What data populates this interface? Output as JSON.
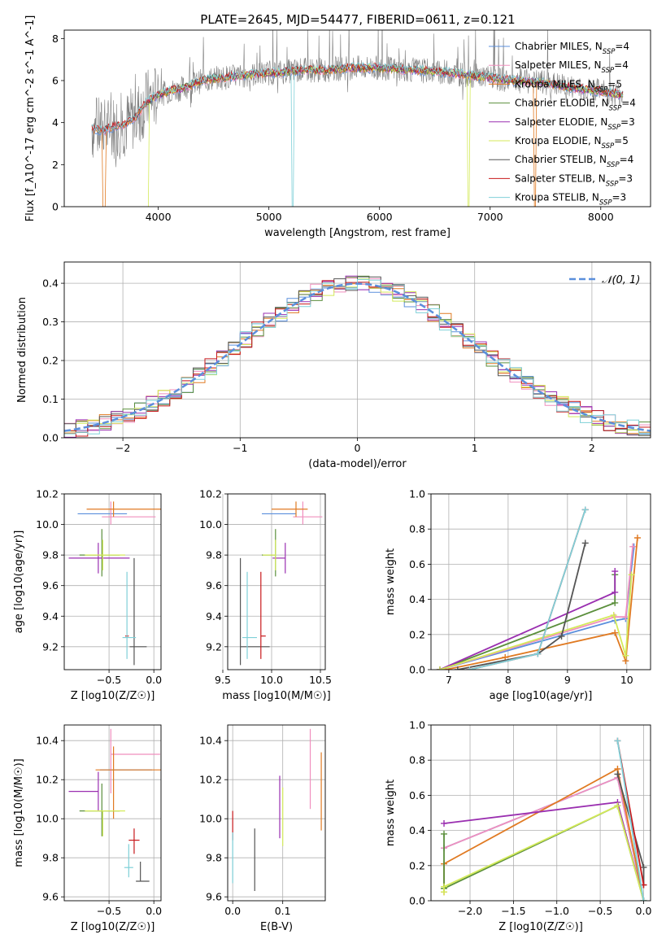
{
  "figure": {
    "title": "PLATE=2645, MJD=54477, FIBERID=0611, z=0.121"
  },
  "colors": {
    "chabrier_miles": "#5b8fdc",
    "salpeter_miles": "#f08fbe",
    "kroupa_miles": "#e07a22",
    "chabrier_elodie": "#5b8f3c",
    "salpeter_elodie": "#9a2fb0",
    "kroupa_elodie": "#d4ea5a",
    "chabrier_stelib": "#555555",
    "salpeter_stelib": "#c8191c",
    "kroupa_stelib": "#7fd0d8",
    "spectrum": "#808080",
    "normal": "#5b8fdc"
  },
  "chart_data": [
    {
      "type": "line",
      "panel": "spectrum",
      "title": "PLATE=2645, MJD=54477, FIBERID=0611, z=0.121",
      "xlabel": "wavelength [Angstrom, rest frame]",
      "ylabel": "Flux [f_λ10^-17 erg cm^-2 s^-1 A^-1]",
      "xlim": [
        3150,
        8450
      ],
      "ylim": [
        0,
        8.4
      ],
      "xticks": [
        "4000",
        "5000",
        "6000",
        "7000",
        "8000"
      ],
      "yticks": [
        "0",
        "2",
        "4",
        "6",
        "8"
      ],
      "grid": false,
      "legend_position": "top-right",
      "continuum": {
        "x": [
          3400,
          3500,
          3600,
          3700,
          3800,
          3900,
          4000,
          4100,
          4200,
          4300,
          4400,
          4500,
          4700,
          4900,
          5100,
          5300,
          5500,
          5700,
          6000,
          6300,
          6600,
          6900,
          7200,
          7500,
          7800,
          8000,
          8200
        ],
        "y": [
          3.7,
          3.6,
          3.8,
          3.9,
          4.3,
          5.0,
          5.3,
          5.5,
          5.6,
          5.8,
          6.0,
          6.1,
          6.2,
          6.3,
          6.4,
          6.5,
          6.5,
          6.6,
          6.6,
          6.5,
          6.4,
          6.2,
          6.0,
          5.9,
          5.6,
          5.5,
          5.3
        ]
      },
      "series": [
        {
          "name": "Chabrier MILES, N_SSP=4",
          "key": "chabrier_miles"
        },
        {
          "name": "Salpeter MILES, N_SSP=4",
          "key": "salpeter_miles"
        },
        {
          "name": "Kroupa MILES, N_SSP=5",
          "key": "kroupa_miles"
        },
        {
          "name": "Chabrier ELODIE, N_SSP=4",
          "key": "chabrier_elodie"
        },
        {
          "name": "Salpeter ELODIE, N_SSP=3",
          "key": "salpeter_elodie"
        },
        {
          "name": "Kroupa ELODIE, N_SSP=5",
          "key": "kroupa_elodie"
        },
        {
          "name": "Chabrier STELIB, N_SSP=4",
          "key": "chabrier_stelib"
        },
        {
          "name": "Salpeter STELIB, N_SSP=3",
          "key": "salpeter_stelib"
        },
        {
          "name": "Kroupa STELIB, N_SSP=3",
          "key": "kroupa_stelib"
        }
      ]
    },
    {
      "type": "line",
      "panel": "residual-histogram",
      "xlabel": "(data-model)/error",
      "ylabel": "Normed distribution",
      "xlim": [
        -2.5,
        2.5
      ],
      "ylim": [
        0,
        0.455
      ],
      "xticks": [
        "−2",
        "−1",
        "0",
        "1",
        "2"
      ],
      "yticks": [
        "0.0",
        "0.1",
        "0.2",
        "0.3",
        "0.4"
      ],
      "grid": true,
      "legend_position": "top-right",
      "legend": [
        "𝒩(0, 1)"
      ],
      "bin_width": 0.1,
      "reference": "normal distribution mean 0, sigma 1"
    },
    {
      "type": "scatter",
      "panel": "age-vs-Z",
      "xlabel": "Z [log10(Z/Z☉)]",
      "ylabel": "age  [log10(age/yr)]",
      "xlim": [
        -1.0,
        0.08
      ],
      "ylim": [
        9.05,
        10.2
      ],
      "xticks": [
        "−0.5",
        "0.0"
      ],
      "yticks": [
        "9.2",
        "9.4",
        "9.6",
        "9.8",
        "10.0",
        "10.2"
      ],
      "grid": true,
      "points": [
        {
          "key": "chabrier_miles",
          "x": -0.55,
          "xerr": [
            0.3,
            0.25
          ],
          "y": 10.07,
          "yerr": [
            0.0,
            0.0
          ]
        },
        {
          "key": "salpeter_miles",
          "x": -0.48,
          "xerr": [
            0.1,
            0.5
          ],
          "y": 10.05,
          "yerr": [
            0.05,
            0.1
          ]
        },
        {
          "key": "kroupa_miles",
          "x": -0.45,
          "xerr": [
            0.3,
            0.55
          ],
          "y": 10.1,
          "yerr": [
            0.05,
            0.05
          ]
        },
        {
          "key": "chabrier_elodie",
          "x": -0.58,
          "xerr": [
            0.25,
            0.2
          ],
          "y": 9.8,
          "yerr": [
            0.14,
            0.17
          ]
        },
        {
          "key": "salpeter_elodie",
          "x": -0.62,
          "xerr": [
            0.33,
            0.35
          ],
          "y": 9.78,
          "yerr": [
            0.1,
            0.1
          ]
        },
        {
          "key": "kroupa_elodie",
          "x": -0.57,
          "xerr": [
            0.2,
            0.25
          ],
          "y": 9.8,
          "yerr": [
            0.1,
            0.1
          ]
        },
        {
          "key": "chabrier_stelib",
          "x": -0.22,
          "xerr": [
            0.05,
            0.14
          ],
          "y": 9.2,
          "yerr": [
            0.12,
            0.58
          ]
        },
        {
          "key": "salpeter_stelib",
          "x": -0.3,
          "xerr": [
            0.02,
            0.02
          ],
          "y": 9.27,
          "yerr": [
            0.0,
            0.0
          ]
        },
        {
          "key": "kroupa_stelib",
          "x": -0.3,
          "xerr": [
            0.05,
            0.1
          ],
          "y": 9.26,
          "yerr": [
            0.14,
            0.43
          ]
        }
      ]
    },
    {
      "type": "scatter",
      "panel": "age-vs-mass",
      "xlabel": "mass [log10(M/M☉)]",
      "ylabel": "",
      "xlim": [
        9.55,
        10.55
      ],
      "ylim": [
        9.05,
        10.2
      ],
      "xticks": [
        "9.5",
        "10.0",
        "10.5"
      ],
      "yticks": [
        "9.2",
        "9.4",
        "9.6",
        "9.8",
        "10.0",
        "10.2"
      ],
      "grid": true,
      "points": [
        {
          "key": "chabrier_miles",
          "x": 10.25,
          "xerr": [
            0.35,
            0.0
          ],
          "y": 10.07,
          "yerr": [
            0.0,
            0.0
          ]
        },
        {
          "key": "salpeter_miles",
          "x": 10.32,
          "xerr": [
            0.1,
            0.2
          ],
          "y": 10.05,
          "yerr": [
            0.05,
            0.1
          ]
        },
        {
          "key": "kroupa_miles",
          "x": 10.25,
          "xerr": [
            0.25,
            0.12
          ],
          "y": 10.1,
          "yerr": [
            0.05,
            0.05
          ]
        },
        {
          "key": "chabrier_elodie",
          "x": 10.04,
          "xerr": [
            0.14,
            0.0
          ],
          "y": 9.8,
          "yerr": [
            0.14,
            0.17
          ]
        },
        {
          "key": "salpeter_elodie",
          "x": 10.14,
          "xerr": [
            0.13,
            0.0
          ],
          "y": 9.78,
          "yerr": [
            0.1,
            0.1
          ]
        },
        {
          "key": "kroupa_elodie",
          "x": 10.04,
          "xerr": [
            0.13,
            0.0
          ],
          "y": 9.8,
          "yerr": [
            0.1,
            0.1
          ]
        },
        {
          "key": "chabrier_stelib",
          "x": 9.68,
          "xerr": [
            0.0,
            0.3
          ],
          "y": 9.2,
          "yerr": [
            0.12,
            0.58
          ]
        },
        {
          "key": "salpeter_stelib",
          "x": 9.89,
          "xerr": [
            0.0,
            0.05
          ],
          "y": 9.27,
          "yerr": [
            0.15,
            0.42
          ]
        },
        {
          "key": "kroupa_stelib",
          "x": 9.75,
          "xerr": [
            0.05,
            0.1
          ],
          "y": 9.26,
          "yerr": [
            0.14,
            0.43
          ]
        }
      ]
    },
    {
      "type": "line",
      "panel": "mass-weight-vs-age",
      "xlabel": "age  [log10(age/yr)]",
      "ylabel": "mass weight",
      "xlim": [
        6.7,
        10.4
      ],
      "ylim": [
        0,
        1.0
      ],
      "xticks": [
        "7",
        "8",
        "9",
        "10"
      ],
      "yticks": [
        "0.0",
        "0.2",
        "0.4",
        "0.6",
        "0.8",
        "1.0"
      ],
      "grid": true,
      "series": [
        {
          "key": "chabrier_miles",
          "x": [
            6.85,
            9.8,
            9.98,
            10.12
          ],
          "y": [
            0.0,
            0.28,
            0.29,
            0.7
          ]
        },
        {
          "key": "salpeter_miles",
          "x": [
            6.85,
            9.8,
            9.98,
            10.1
          ],
          "y": [
            0.0,
            0.3,
            0.3,
            0.7
          ]
        },
        {
          "key": "kroupa_miles",
          "x": [
            6.95,
            7.95,
            9.8,
            9.98,
            10.18
          ],
          "y": [
            0.0,
            0.07,
            0.21,
            0.05,
            0.75
          ]
        },
        {
          "key": "chabrier_elodie",
          "x": [
            6.85,
            9.8,
            9.8
          ],
          "y": [
            0.0,
            0.38,
            0.54
          ]
        },
        {
          "key": "salpeter_elodie",
          "x": [
            6.85,
            9.8,
            9.8
          ],
          "y": [
            0.0,
            0.44,
            0.56
          ]
        },
        {
          "key": "kroupa_elodie",
          "x": [
            6.85,
            9.78,
            9.98,
            10.08
          ],
          "y": [
            0.0,
            0.31,
            0.08,
            0.54
          ]
        },
        {
          "key": "chabrier_stelib",
          "x": [
            7.15,
            8.5,
            8.9,
            9.3
          ],
          "y": [
            0.0,
            0.09,
            0.19,
            0.72
          ]
        },
        {
          "key": "salpeter_stelib",
          "x": [
            7.35,
            8.5,
            9.3
          ],
          "y": [
            0.0,
            0.09,
            0.91
          ]
        },
        {
          "key": "kroupa_stelib",
          "x": [
            7.35,
            8.5,
            9.3
          ],
          "y": [
            0.0,
            0.09,
            0.91
          ]
        }
      ]
    },
    {
      "type": "scatter",
      "panel": "mass-vs-Z",
      "xlabel": "Z [log10(Z/Z☉)]",
      "ylabel": "mass [log10(M/M☉)]",
      "xlim": [
        -1.0,
        0.08
      ],
      "ylim": [
        9.58,
        10.48
      ],
      "xticks": [
        "−0.5",
        "0.0"
      ],
      "yticks": [
        "9.6",
        "9.8",
        "10.0",
        "10.2",
        "10.4"
      ],
      "grid": true,
      "points": [
        {
          "key": "chabrier_miles",
          "x": -0.3,
          "xerr": [
            0.3,
            0.28
          ],
          "y": 10.25,
          "yerr": [
            0.0,
            0.0
          ]
        },
        {
          "key": "salpeter_miles",
          "x": -0.48,
          "xerr": [
            0.0,
            0.55
          ],
          "y": 10.33,
          "yerr": [
            0.2,
            0.13
          ]
        },
        {
          "key": "kroupa_miles",
          "x": -0.45,
          "xerr": [
            0.2,
            0.55
          ],
          "y": 10.25,
          "yerr": [
            0.25,
            0.12
          ]
        },
        {
          "key": "chabrier_elodie",
          "x": -0.58,
          "xerr": [
            0.25,
            0.2
          ],
          "y": 10.04,
          "yerr": [
            0.13,
            0.14
          ]
        },
        {
          "key": "salpeter_elodie",
          "x": -0.62,
          "xerr": [
            0.33,
            0.0
          ],
          "y": 10.14,
          "yerr": [
            0.1,
            0.1
          ]
        },
        {
          "key": "kroupa_elodie",
          "x": -0.57,
          "xerr": [
            0.2,
            0.25
          ],
          "y": 10.04,
          "yerr": [
            0.13,
            0.0
          ]
        },
        {
          "key": "chabrier_stelib",
          "x": -0.15,
          "xerr": [
            0.05,
            0.1
          ],
          "y": 9.68,
          "yerr": [
            0.0,
            0.1
          ]
        },
        {
          "key": "salpeter_stelib",
          "x": -0.22,
          "xerr": [
            0.06,
            0.06
          ],
          "y": 9.89,
          "yerr": [
            0.07,
            0.06
          ]
        },
        {
          "key": "kroupa_stelib",
          "x": -0.28,
          "xerr": [
            0.05,
            0.05
          ],
          "y": 9.75,
          "yerr": [
            0.05,
            0.12
          ]
        }
      ]
    },
    {
      "type": "scatter",
      "panel": "mass-vs-EBV",
      "xlabel": "E(B-V)",
      "ylabel": "",
      "xlim": [
        -0.01,
        0.185
      ],
      "ylim": [
        9.58,
        10.48
      ],
      "xticks": [
        "0.0",
        "0.1"
      ],
      "yticks": [
        "9.6",
        "9.8",
        "10.0",
        "10.2",
        "10.4"
      ],
      "grid": true,
      "points": [
        {
          "key": "kroupa_miles",
          "x": 0.177,
          "y": 10.2,
          "yerr": [
            0.26,
            0.14
          ]
        },
        {
          "key": "salpeter_miles",
          "x": 0.155,
          "y": 10.25,
          "yerr": [
            0.2,
            0.21
          ]
        },
        {
          "key": "salpeter_elodie",
          "x": 0.094,
          "y": 10.1,
          "yerr": [
            0.2,
            0.12
          ]
        },
        {
          "key": "kroupa_elodie",
          "x": 0.1,
          "y": 10.04,
          "yerr": [
            0.18,
            0.12
          ]
        },
        {
          "key": "chabrier_stelib",
          "x": 0.044,
          "y": 9.68,
          "yerr": [
            0.05,
            0.27
          ]
        },
        {
          "key": "salpeter_stelib",
          "x": 0.0,
          "y": 9.89,
          "yerr": [
            0.0,
            0.15
          ]
        },
        {
          "key": "kroupa_stelib",
          "x": 0.0,
          "y": 9.75,
          "yerr": [
            0.08,
            0.18
          ]
        }
      ]
    },
    {
      "type": "line",
      "panel": "mass-weight-vs-Z",
      "xlabel": "Z [log10(Z/Z☉)]",
      "ylabel": "mass weight",
      "xlim": [
        -2.45,
        0.08
      ],
      "ylim": [
        0,
        1.0
      ],
      "xticks": [
        "−2.0",
        "−1.5",
        "−1.0",
        "−0.5",
        "0.0"
      ],
      "yticks": [
        "0.0",
        "0.2",
        "0.4",
        "0.6",
        "0.8",
        "1.0"
      ],
      "grid": true,
      "series": [
        {
          "key": "chabrier_miles",
          "x": [
            -2.3,
            -0.3,
            0.0
          ],
          "y": [
            0.3,
            0.7,
            0.0
          ]
        },
        {
          "key": "salpeter_miles",
          "x": [
            -2.3,
            -0.3,
            0.0
          ],
          "y": [
            0.3,
            0.7,
            0.0
          ]
        },
        {
          "key": "kroupa_miles",
          "x": [
            -2.3,
            -2.3,
            -0.3,
            0.0
          ],
          "y": [
            0.05,
            0.21,
            0.75,
            0.0
          ]
        },
        {
          "key": "chabrier_elodie",
          "x": [
            -2.3,
            -2.3,
            -0.3,
            0.0
          ],
          "y": [
            0.38,
            0.07,
            0.54,
            0.0
          ]
        },
        {
          "key": "salpeter_elodie",
          "x": [
            -2.3,
            -0.3,
            0.0
          ],
          "y": [
            0.44,
            0.56,
            0.0
          ]
        },
        {
          "key": "kroupa_elodie",
          "x": [
            -2.3,
            -2.3,
            -0.3,
            0.0
          ],
          "y": [
            0.05,
            0.08,
            0.54,
            0.0
          ]
        },
        {
          "key": "chabrier_stelib",
          "x": [
            -0.3,
            0.0,
            0.0
          ],
          "y": [
            0.72,
            0.19,
            0.09
          ]
        },
        {
          "key": "salpeter_stelib",
          "x": [
            -0.3,
            0.0
          ],
          "y": [
            0.91,
            0.09
          ]
        },
        {
          "key": "kroupa_stelib",
          "x": [
            -0.3,
            0.0
          ],
          "y": [
            0.91,
            0.0
          ]
        }
      ]
    }
  ]
}
